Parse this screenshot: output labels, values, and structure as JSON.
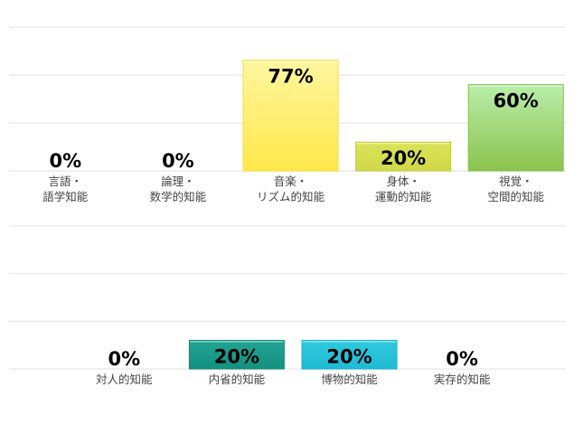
{
  "chart_data": [
    {
      "type": "bar",
      "ylim": [
        0,
        100
      ],
      "grid": true,
      "gridlines": [
        0,
        33.3,
        66.7,
        100
      ],
      "categories": [
        [
          "言語・",
          "語学知能"
        ],
        [
          "論理・",
          "数学的知能"
        ],
        [
          "音楽・",
          "リズム的知能"
        ],
        [
          "身体・",
          "運動的知能"
        ],
        [
          "視覚・",
          "空間的知能"
        ]
      ],
      "values": [
        0,
        0,
        77,
        20,
        60
      ],
      "data_labels": [
        "0%",
        "0%",
        "77%",
        "20%",
        "60%"
      ],
      "colors": [
        [
          "#cccccc",
          "#cccccc",
          "#cccccc"
        ],
        [
          "#cccccc",
          "#cccccc",
          "#cccccc"
        ],
        [
          "#fff6a0",
          "#ffe84a",
          "#f3df3a"
        ],
        [
          "#dbe35a",
          "#cfd948",
          "#c2cc3a"
        ],
        [
          "#b9eeaa",
          "#8cc24e",
          "#86bf4a"
        ]
      ]
    },
    {
      "type": "bar",
      "ylim": [
        0,
        100
      ],
      "grid": true,
      "gridlines": [
        0,
        33.3,
        66.7,
        100
      ],
      "categories": [
        [
          "対人的知能"
        ],
        [
          "内省的知能"
        ],
        [
          "博物的知能"
        ],
        [
          "実存的知能"
        ]
      ],
      "values": [
        0,
        20,
        20,
        0
      ],
      "data_labels": [
        "0%",
        "20%",
        "20%",
        "0%"
      ],
      "colors": [
        [
          "#cccccc",
          "#cccccc",
          "#cccccc"
        ],
        [
          "#22a394",
          "#13917f",
          "#0f8a7a"
        ],
        [
          "#30cade",
          "#1fbad4",
          "#1aaec8"
        ],
        [
          "#cccccc",
          "#cccccc",
          "#cccccc"
        ]
      ]
    }
  ]
}
